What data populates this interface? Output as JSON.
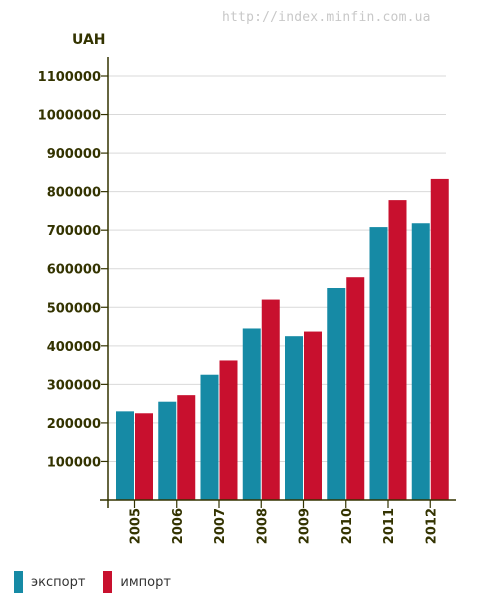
{
  "watermark": "http://index.minfin.com.ua",
  "chart_data": {
    "type": "bar",
    "ylabel": "UAH",
    "xlabel": "",
    "title": "",
    "categories": [
      "2005",
      "2006",
      "2007",
      "2008",
      "2009",
      "2010",
      "2011",
      "2012"
    ],
    "series": [
      {
        "name": "экспорт",
        "color": "#168aa5",
        "values": [
          230000,
          255000,
          325000,
          445000,
          425000,
          550000,
          708000,
          718000
        ]
      },
      {
        "name": "импорт",
        "color": "#c8102e",
        "values": [
          225000,
          272000,
          362000,
          520000,
          437000,
          578000,
          778000,
          833000
        ]
      }
    ],
    "yticks": [
      100000,
      200000,
      300000,
      400000,
      500000,
      600000,
      700000,
      800000,
      900000,
      1000000,
      1100000
    ],
    "ylim": [
      0,
      1100000
    ],
    "grid": true,
    "legend_position": "bottom-left"
  }
}
